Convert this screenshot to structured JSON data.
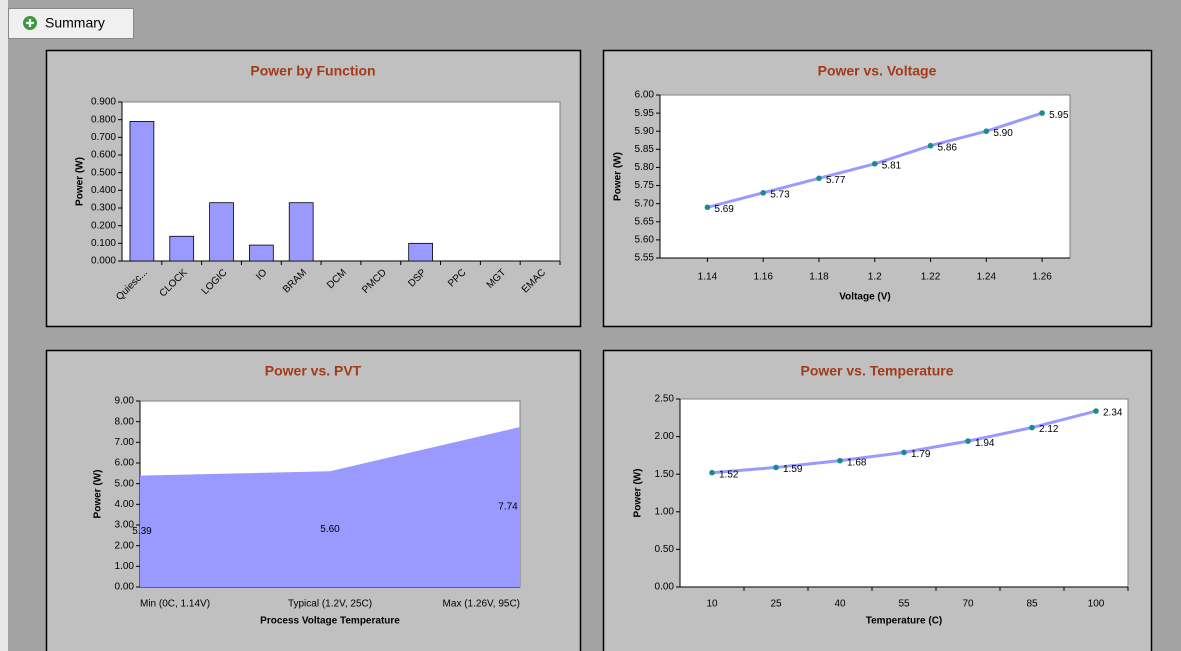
{
  "tab": {
    "label": "Summary"
  },
  "chart_data": [
    {
      "type": "bar",
      "title": "Power by Function",
      "ylabel": "Power (W)",
      "color": "#9999ff",
      "categories": [
        "Quiesc...",
        "CLOCK",
        "LOGIC",
        "IO",
        "BRAM",
        "DCM",
        "PMCD",
        "DSP",
        "PPC",
        "MGT",
        "EMAC"
      ],
      "values": [
        0.79,
        0.14,
        0.33,
        0.09,
        0.33,
        0,
        0,
        0.1,
        0,
        0,
        0
      ],
      "ylim": [
        0,
        0.9
      ],
      "yticks": [
        {
          "value": 0,
          "label": "0.000"
        },
        {
          "value": 0.1,
          "label": "0.100"
        },
        {
          "value": 0.2,
          "label": "0.200"
        },
        {
          "value": 0.3,
          "label": "0.300"
        },
        {
          "value": 0.4,
          "label": "0.400"
        },
        {
          "value": 0.5,
          "label": "0.500"
        },
        {
          "value": 0.6,
          "label": "0.600"
        },
        {
          "value": 0.7,
          "label": "0.700"
        },
        {
          "value": 0.8,
          "label": "0.800"
        },
        {
          "value": 0.9,
          "label": "0.900"
        }
      ]
    },
    {
      "type": "line",
      "title": "Power vs. Voltage",
      "xlabel": "Voltage (V)",
      "ylabel": "Power (W)",
      "color": "#9999ff",
      "marker_color": "#1a8c8c",
      "x": [
        1.14,
        1.16,
        1.18,
        1.2,
        1.22,
        1.24,
        1.26
      ],
      "values": [
        5.69,
        5.73,
        5.77,
        5.81,
        5.86,
        5.9,
        5.95
      ],
      "value_labels": [
        "5.69",
        "5.73",
        "5.77",
        "5.81",
        "5.86",
        "5.90",
        "5.95"
      ],
      "xlim": [
        1.123,
        1.27
      ],
      "xticks": [
        1.14,
        1.16,
        1.18,
        1.2,
        1.22,
        1.24,
        1.26
      ],
      "ylim": [
        5.55,
        6.0
      ],
      "yticks": [
        5.55,
        {
          "value": 5.6,
          "label": "5.60"
        },
        5.65,
        {
          "value": 5.7,
          "label": "5.70"
        },
        5.75,
        {
          "value": 5.8,
          "label": "5.80"
        },
        5.85,
        {
          "value": 5.9,
          "label": "5.90"
        },
        5.95,
        {
          "value": 6.0,
          "label": "6.00"
        }
      ]
    },
    {
      "type": "area",
      "title": "Power vs. PVT",
      "xlabel": "Process Voltage Temperature",
      "ylabel": "Power (W)",
      "color": "#9999ff",
      "categories": [
        "Min (0C, 1.14V)",
        "Typical (1.2V, 25C)",
        "Max (1.26V, 95C)"
      ],
      "values": [
        5.39,
        5.6,
        7.74
      ],
      "value_labels": [
        "5.39",
        "5.60",
        "7.74"
      ],
      "ylim": [
        0,
        9
      ],
      "yticks": [
        {
          "value": 0,
          "label": "0.00"
        },
        {
          "value": 1,
          "label": "1.00"
        },
        {
          "value": 2,
          "label": "2.00"
        },
        {
          "value": 3,
          "label": "3.00"
        },
        {
          "value": 4,
          "label": "4.00"
        },
        {
          "value": 5,
          "label": "5.00"
        },
        {
          "value": 6,
          "label": "6.00"
        },
        {
          "value": 7,
          "label": "7.00"
        },
        {
          "value": 8,
          "label": "8.00"
        },
        {
          "value": 9,
          "label": "9.00"
        }
      ]
    },
    {
      "type": "line",
      "title": "Power vs. Temperature",
      "xlabel": "Temperature (C)",
      "ylabel": "Power (W)",
      "color": "#9999ff",
      "marker_color": "#1a8c8c",
      "categories": [
        "10",
        "25",
        "40",
        "55",
        "70",
        "85",
        "100"
      ],
      "values": [
        1.52,
        1.59,
        1.68,
        1.79,
        1.94,
        2.12,
        2.34
      ],
      "value_labels": [
        "1.52",
        "1.59",
        "1.68",
        "1.79",
        "1.94",
        "2.12",
        "2.34"
      ],
      "ylim": [
        0,
        2.5
      ],
      "yticks": [
        {
          "value": 0,
          "label": "0.00"
        },
        {
          "value": 0.5,
          "label": "0.50"
        },
        {
          "value": 1,
          "label": "1.00"
        },
        {
          "value": 1.5,
          "label": "1.50"
        },
        {
          "value": 2,
          "label": "2.00"
        },
        {
          "value": 2.5,
          "label": "2.50"
        }
      ]
    }
  ]
}
